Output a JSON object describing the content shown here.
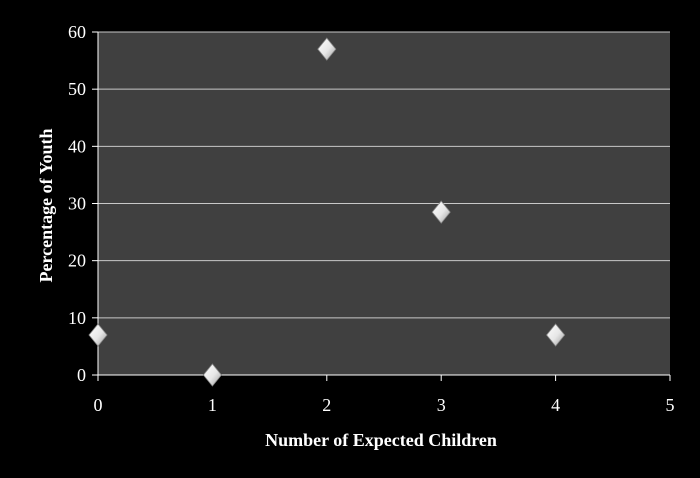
{
  "chart_data": {
    "type": "scatter",
    "title": "",
    "xlabel": "Number of Expected Children",
    "ylabel": "Percentage of Youth",
    "xlim": [
      0,
      5
    ],
    "ylim": [
      0,
      60
    ],
    "x_ticks": [
      0,
      1,
      2,
      3,
      4,
      5
    ],
    "y_ticks": [
      0,
      10,
      20,
      30,
      40,
      50,
      60
    ],
    "grid": {
      "horizontal": true,
      "vertical": false
    },
    "legend": "none",
    "series": [
      {
        "points": [
          {
            "x": 0,
            "y": 7
          },
          {
            "x": 1,
            "y": 0
          },
          {
            "x": 2,
            "y": 57
          },
          {
            "x": 3,
            "y": 28.5
          },
          {
            "x": 4,
            "y": 7
          }
        ]
      }
    ],
    "colors": {
      "background": "#000000",
      "plot_area": "#404040",
      "gridline": "#c8c8c8",
      "axis": "#ffffff",
      "marker": "#e8e8e8",
      "text": "#ffffff"
    }
  }
}
